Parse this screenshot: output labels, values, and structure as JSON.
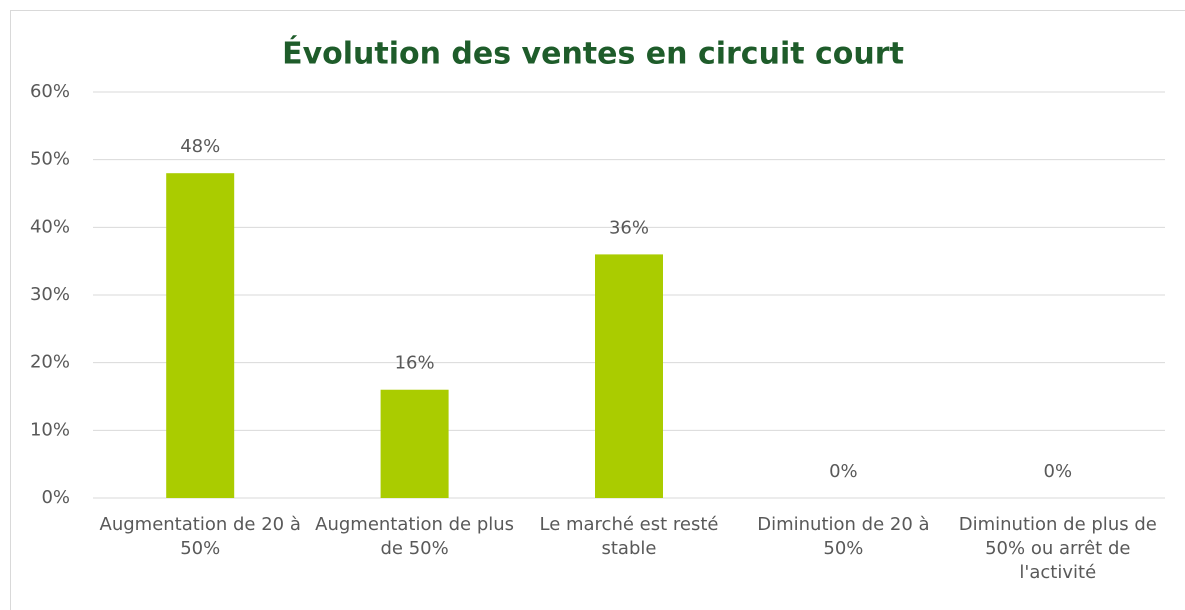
{
  "chart_data": {
    "type": "bar",
    "title": "Évolution des ventes en circuit court",
    "categories": [
      "Augmentation de 20 à 50%",
      "Augmentation de plus de 50%",
      "Le marché est resté stable",
      "Diminution de 20 à 50%",
      "Diminution de plus de 50% ou arrêt de l'activité"
    ],
    "values": [
      48,
      16,
      36,
      0,
      0
    ],
    "value_labels": [
      "48%",
      "16%",
      "36%",
      "0%",
      "0%"
    ],
    "color": "#aacc00",
    "ylim": [
      0,
      60
    ],
    "yticks": [
      {
        "value": 0,
        "label": "0%"
      },
      {
        "value": 10,
        "label": "10%"
      },
      {
        "value": 20,
        "label": "20%"
      },
      {
        "value": 30,
        "label": "30%"
      },
      {
        "value": 40,
        "label": "40%"
      },
      {
        "value": 50,
        "label": "50%"
      },
      {
        "value": 60,
        "label": "60%"
      }
    ],
    "grid": true
  }
}
